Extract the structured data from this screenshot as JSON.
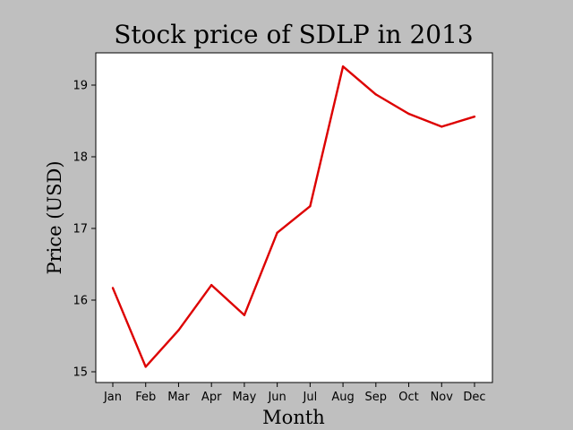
{
  "chart_data": {
    "type": "line",
    "title": "Stock price of SDLP in 2013",
    "xlabel": "Month",
    "ylabel": "Price (USD)",
    "categories": [
      "Jan",
      "Feb",
      "Mar",
      "Apr",
      "May",
      "Jun",
      "Jul",
      "Aug",
      "Sep",
      "Oct",
      "Nov",
      "Dec"
    ],
    "series": [
      {
        "values": [
          16.17,
          15.07,
          15.58,
          16.21,
          15.79,
          16.94,
          17.31,
          19.26,
          18.87,
          18.6,
          18.42,
          18.56
        ],
        "color": "#dd0000"
      }
    ],
    "ylim": [
      14.85,
      19.45
    ],
    "yticks": [
      15,
      16,
      17,
      18,
      19
    ],
    "grid": false,
    "legend": "none",
    "colors": {
      "figure_background": "#bfbfbf",
      "axes_background": "#ffffff",
      "line": "#dd0000"
    }
  }
}
